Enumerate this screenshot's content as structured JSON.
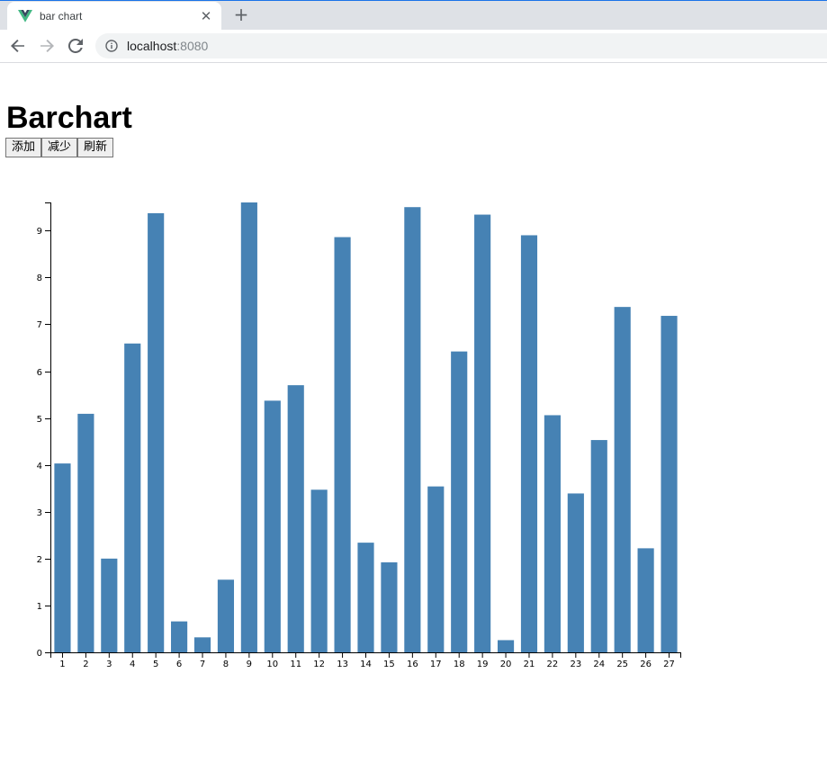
{
  "browser": {
    "tab_title": "bar chart",
    "url_host": "localhost",
    "url_port": ":8080",
    "favicon": "vue-logo-icon"
  },
  "page": {
    "title": "Barchart",
    "buttons": {
      "add": "添加",
      "remove": "减少",
      "refresh": "刷新"
    }
  },
  "colors": {
    "bar": "#4682b4"
  },
  "chart_data": {
    "type": "bar",
    "title": "",
    "xlabel": "",
    "ylabel": "",
    "categories": [
      "1",
      "2",
      "3",
      "4",
      "5",
      "6",
      "7",
      "8",
      "9",
      "10",
      "11",
      "12",
      "13",
      "14",
      "15",
      "16",
      "17",
      "18",
      "19",
      "20",
      "21",
      "22",
      "23",
      "24",
      "25",
      "26",
      "27"
    ],
    "values": [
      4.03,
      5.09,
      2.0,
      6.59,
      9.37,
      0.66,
      0.32,
      1.55,
      9.6,
      5.37,
      5.7,
      3.47,
      8.86,
      2.34,
      1.92,
      9.5,
      3.54,
      6.42,
      9.34,
      0.26,
      8.9,
      5.06,
      3.39,
      4.53,
      7.37,
      2.22,
      7.18
    ],
    "yticks": [
      0,
      1,
      2,
      3,
      4,
      5,
      6,
      7,
      8,
      9
    ],
    "ylim": [
      0,
      9.6
    ],
    "grid": false
  }
}
